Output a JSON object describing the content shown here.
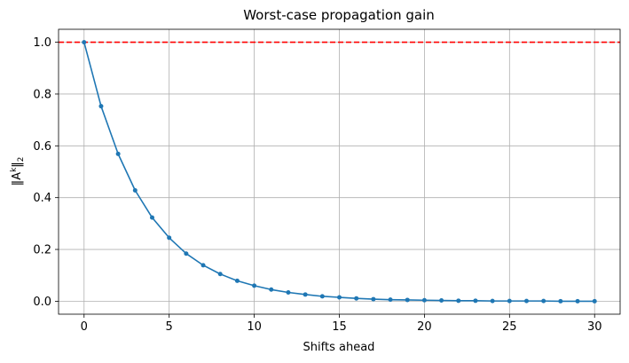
{
  "chart_data": {
    "type": "line",
    "title": "Worst-case propagation gain",
    "xlabel": "Shifts ahead",
    "ylabel_base": "‖A",
    "ylabel_sup": "k",
    "ylabel_tail": "‖",
    "ylabel_sub": "2",
    "xlim": [
      -1.5,
      31.5
    ],
    "ylim": [
      -0.05,
      1.05
    ],
    "xticks": [
      0,
      5,
      10,
      15,
      20,
      25,
      30
    ],
    "yticks": [
      0.0,
      0.2,
      0.4,
      0.6,
      0.8,
      1.0
    ],
    "ytick_labels": [
      "0.0",
      "0.2",
      "0.4",
      "0.6",
      "0.8",
      "1.0"
    ],
    "grid": true,
    "reference_line": {
      "y": 1.0,
      "color": "#ff0000",
      "style": "dashed"
    },
    "series": [
      {
        "color": "#1f77b4",
        "marker": "circle",
        "x": [
          0,
          1,
          2,
          3,
          4,
          5,
          6,
          7,
          8,
          9,
          10,
          11,
          12,
          13,
          14,
          15,
          16,
          17,
          18,
          19,
          20,
          21,
          22,
          23,
          24,
          25,
          26,
          27,
          28,
          29,
          30
        ],
        "y": [
          1.0,
          0.753,
          0.569,
          0.428,
          0.323,
          0.245,
          0.184,
          0.139,
          0.105,
          0.079,
          0.06,
          0.045,
          0.034,
          0.026,
          0.019,
          0.015,
          0.011,
          0.008,
          0.006,
          0.005,
          0.004,
          0.003,
          0.002,
          0.002,
          0.001,
          0.001,
          0.001,
          0.001,
          0.0,
          0.0,
          0.0
        ]
      }
    ]
  }
}
